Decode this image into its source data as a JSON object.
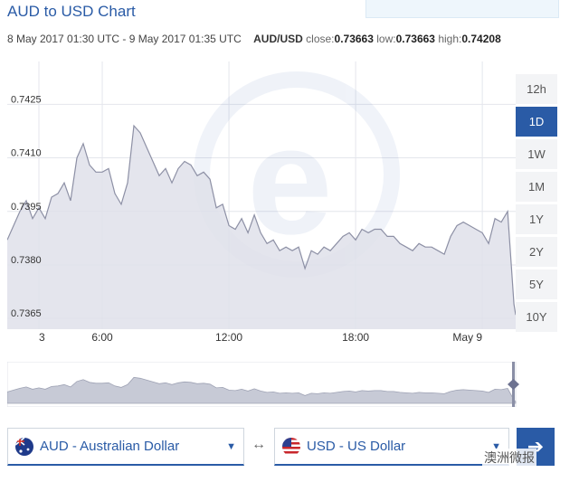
{
  "header": {
    "title": "AUD to USD Chart",
    "date_range": "8 May 2017 01:30 UTC - 9 May 2017 01:35 UTC",
    "pair": "AUD/USD",
    "close_label": "close:",
    "close_value": "0.73663",
    "low_label": "low:",
    "low_value": "0.73663",
    "high_label": "high:",
    "high_value": "0.74208"
  },
  "ranges": [
    {
      "label": "12h",
      "active": false
    },
    {
      "label": "1D",
      "active": true
    },
    {
      "label": "1W",
      "active": false
    },
    {
      "label": "1M",
      "active": false
    },
    {
      "label": "1Y",
      "active": false
    },
    {
      "label": "2Y",
      "active": false
    },
    {
      "label": "5Y",
      "active": false
    },
    {
      "label": "10Y",
      "active": false
    }
  ],
  "chart_data": {
    "type": "area",
    "title": "",
    "xlabel": "",
    "ylabel": "",
    "ylim": [
      0.7362,
      0.7437
    ],
    "y_ticks": [
      "0.7425",
      "0.7410",
      "0.7395",
      "0.7380",
      "0.7365"
    ],
    "x_ticks": [
      "3",
      "6:00",
      "12:00",
      "18:00",
      "May 9"
    ],
    "x_tick_hours": [
      3,
      6,
      12,
      18,
      24
    ],
    "x_range_hours": [
      1.5,
      25.58
    ],
    "grid": true,
    "series_x": [
      1.5,
      1.8,
      2.1,
      2.4,
      2.7,
      3.0,
      3.3,
      3.6,
      3.9,
      4.2,
      4.5,
      4.8,
      5.1,
      5.4,
      5.7,
      6.0,
      6.3,
      6.6,
      6.9,
      7.2,
      7.5,
      7.8,
      8.1,
      8.4,
      8.7,
      9.0,
      9.3,
      9.6,
      9.9,
      10.2,
      10.5,
      10.8,
      11.1,
      11.4,
      11.7,
      12.0,
      12.3,
      12.6,
      12.9,
      13.2,
      13.5,
      13.8,
      14.1,
      14.4,
      14.7,
      15.0,
      15.3,
      15.6,
      15.9,
      16.2,
      16.5,
      16.8,
      17.1,
      17.4,
      17.7,
      18.0,
      18.3,
      18.6,
      18.9,
      19.2,
      19.5,
      19.8,
      20.1,
      20.4,
      20.7,
      21.0,
      21.3,
      21.6,
      21.9,
      22.2,
      22.5,
      22.8,
      23.1,
      23.4,
      23.7,
      24.0,
      24.3,
      24.6,
      24.9,
      25.2,
      25.5,
      25.58
    ],
    "series_y": [
      0.7387,
      0.7391,
      0.7395,
      0.7398,
      0.7393,
      0.7396,
      0.7393,
      0.7399,
      0.74,
      0.7403,
      0.7398,
      0.741,
      0.7414,
      0.7408,
      0.7406,
      0.7406,
      0.7407,
      0.74,
      0.7397,
      0.7403,
      0.7419,
      0.7417,
      0.7413,
      0.7409,
      0.7405,
      0.7407,
      0.7403,
      0.7407,
      0.7409,
      0.7408,
      0.7405,
      0.7406,
      0.7404,
      0.7396,
      0.7397,
      0.7391,
      0.739,
      0.7393,
      0.7389,
      0.7394,
      0.7389,
      0.7386,
      0.7387,
      0.7384,
      0.7385,
      0.7384,
      0.7385,
      0.7379,
      0.7384,
      0.7383,
      0.7385,
      0.7384,
      0.7386,
      0.7388,
      0.7389,
      0.7387,
      0.739,
      0.7389,
      0.739,
      0.739,
      0.7388,
      0.7388,
      0.7386,
      0.7385,
      0.7384,
      0.7386,
      0.7385,
      0.7385,
      0.7384,
      0.7383,
      0.7388,
      0.7391,
      0.7392,
      0.7391,
      0.739,
      0.7389,
      0.7386,
      0.7393,
      0.7392,
      0.7395,
      0.7369,
      0.7366
    ]
  },
  "converter": {
    "from_label": "AUD - Australian Dollar",
    "to_label": "USD - US Dollar",
    "swap_symbol": "↔",
    "go_symbol": "➔",
    "caret": "▼"
  },
  "watermark_text": "澳洲微报",
  "colors": {
    "accent": "#2a5ba6",
    "area_fill": "#dfe1ea",
    "line": "#8d90a5"
  }
}
